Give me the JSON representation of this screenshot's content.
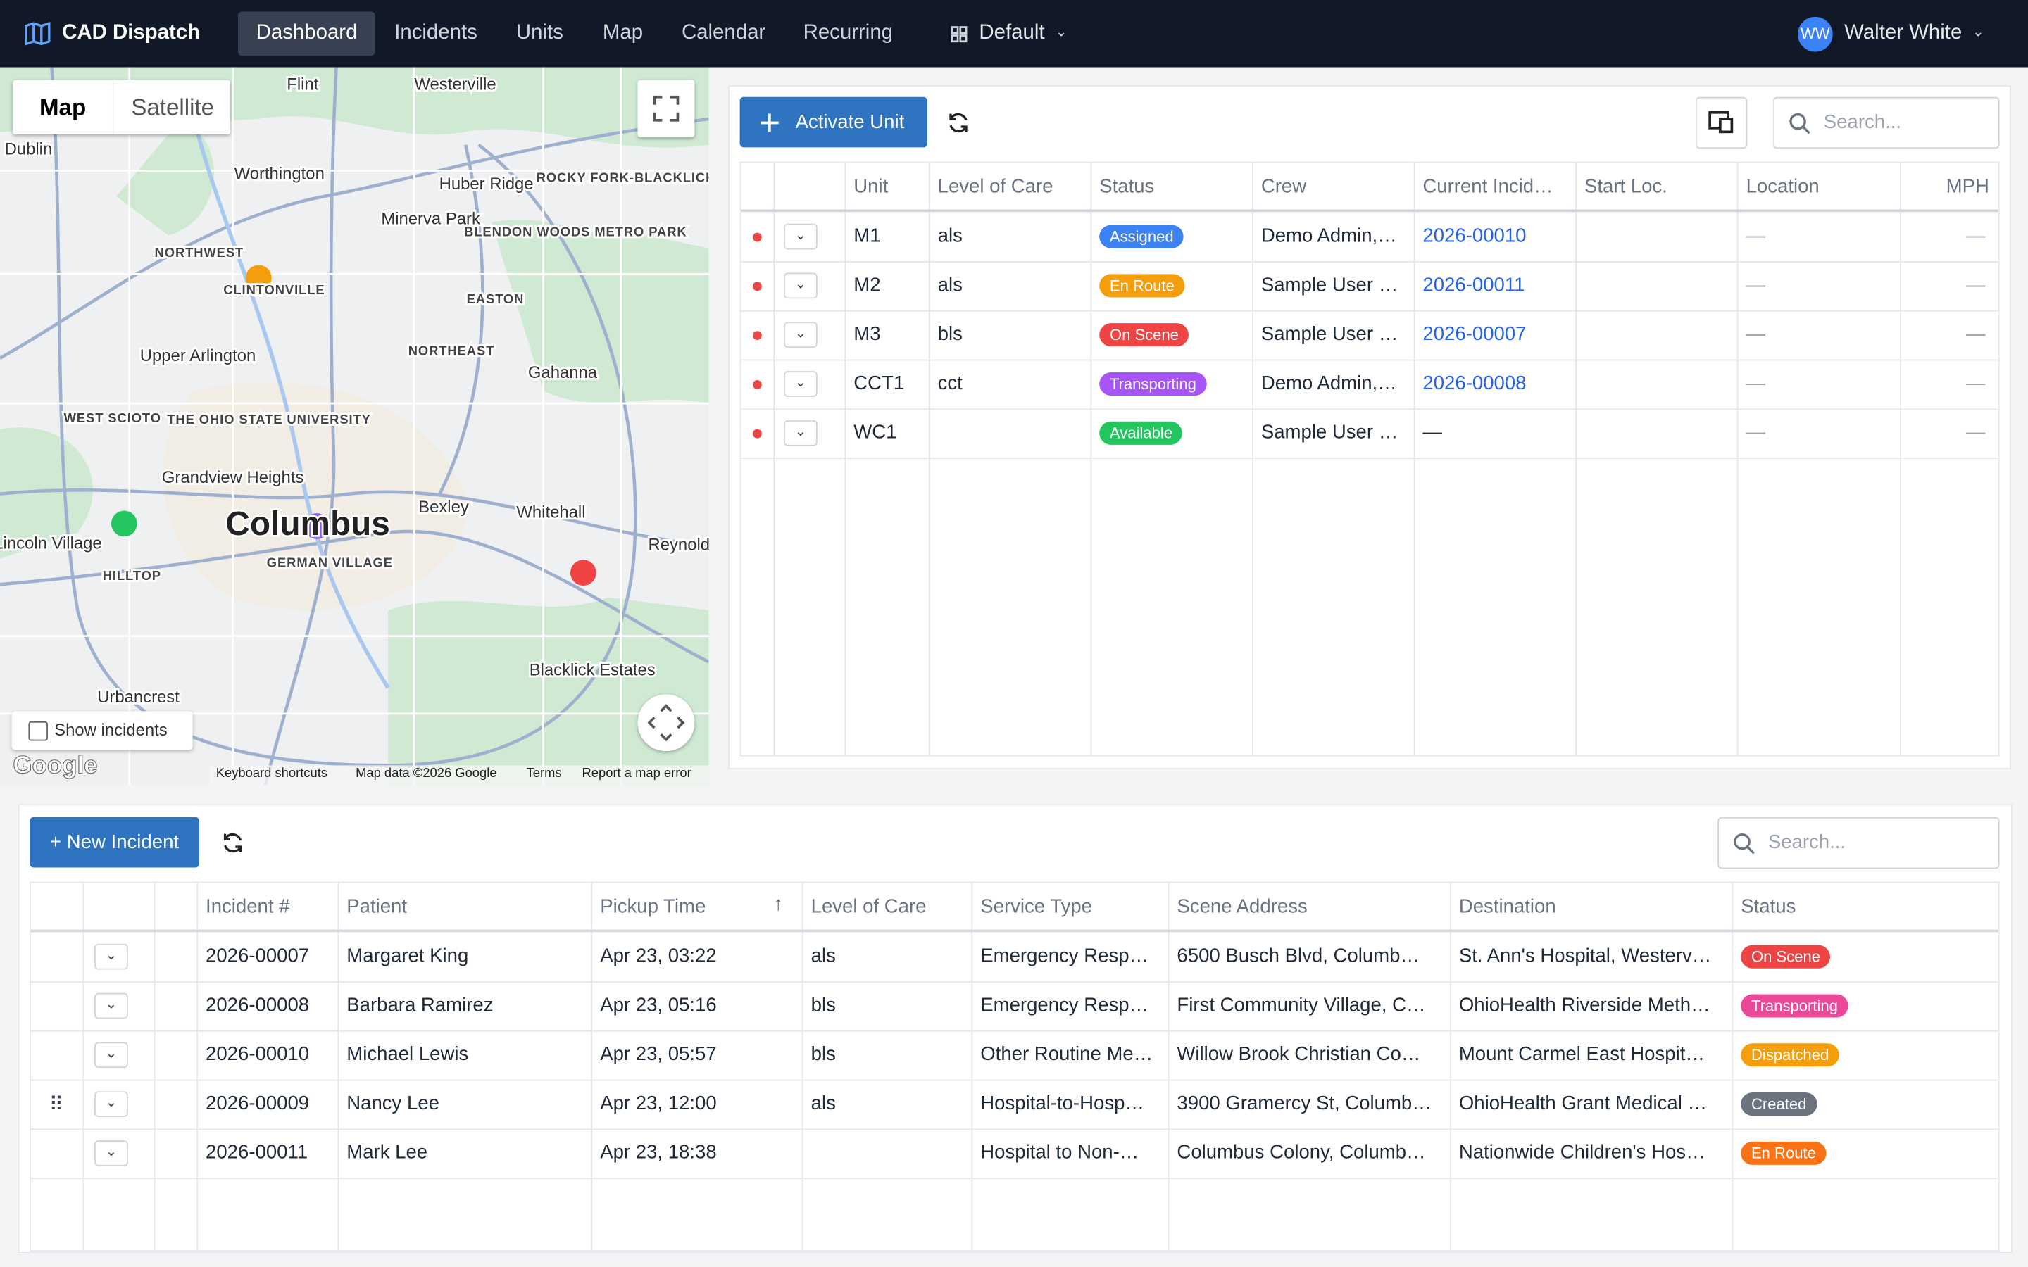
{
  "nav": {
    "brand": "CAD Dispatch",
    "items": [
      "Dashboard",
      "Incidents",
      "Units",
      "Map",
      "Calendar",
      "Recurring"
    ],
    "layout": "Default",
    "user_initials": "WW",
    "user_name": "Walter White"
  },
  "map": {
    "tabs": [
      "Map",
      "Satellite"
    ],
    "labels": [
      {
        "text": "Westerville",
        "style": "town"
      },
      {
        "text": "Flint",
        "style": "town"
      },
      {
        "text": "Worthington",
        "style": "town"
      },
      {
        "text": "Huber Ridge",
        "style": "town"
      },
      {
        "text": "Minerva Park",
        "style": "town"
      },
      {
        "text": "NORTHWEST",
        "style": "district"
      },
      {
        "text": "CLINTONVILLE",
        "style": "district"
      },
      {
        "text": "EASTON",
        "style": "district"
      },
      {
        "text": "NORTHEAST",
        "style": "district"
      },
      {
        "text": "Upper Arlington",
        "style": "town"
      },
      {
        "text": "Gahanna",
        "style": "town"
      },
      {
        "text": "WEST SCIOTO",
        "style": "district"
      },
      {
        "text": "THE OHIO STATE UNIVERSITY",
        "style": "district"
      },
      {
        "text": "Grandview Heights",
        "style": "town"
      },
      {
        "text": "Columbus",
        "style": "city"
      },
      {
        "text": "Bexley",
        "style": "town"
      },
      {
        "text": "Whitehall",
        "style": "town"
      },
      {
        "text": "Lincoln Village",
        "style": "town"
      },
      {
        "text": "Reynold",
        "style": "town"
      },
      {
        "text": "GERMAN VILLAGE",
        "style": "district"
      },
      {
        "text": "HILLTOP",
        "style": "district"
      },
      {
        "text": "Blacklick Estates",
        "style": "town"
      },
      {
        "text": "Urbancrest",
        "style": "town"
      },
      {
        "text": "Dublin",
        "style": "town"
      },
      {
        "text": "ROCKY FORK-BLACKLICK",
        "style": "district"
      },
      {
        "text": "BLENDON WOODS METRO PARK",
        "style": "district"
      }
    ],
    "show_incidents": "Show incidents",
    "logo": "Google",
    "footer": [
      "Keyboard shortcuts",
      "Map data ©2026 Google",
      "Terms",
      "Report a map error"
    ]
  },
  "units": {
    "activate": "Activate Unit",
    "search": "Search...",
    "columns": [
      "Unit",
      "Level of Care",
      "Status",
      "Crew",
      "Current Incid…",
      "Start Loc.",
      "Location",
      "MPH"
    ],
    "rows": [
      {
        "unit": "M1",
        "level": "als",
        "status": "Assigned",
        "status_color": "#3b82f6",
        "crew": "Demo Admin,…",
        "incident": "2026-00010",
        "start": null,
        "location": "—",
        "mph": "—"
      },
      {
        "unit": "M2",
        "level": "als",
        "status": "En Route",
        "status_color": "#f59e0b",
        "crew": "Sample User …",
        "incident": "2026-00011",
        "start": null,
        "location": "—",
        "mph": "—"
      },
      {
        "unit": "M3",
        "level": "bls",
        "status": "On Scene",
        "status_color": "#ef4444",
        "crew": "Sample User …",
        "incident": "2026-00007",
        "start": null,
        "location": "—",
        "mph": "—"
      },
      {
        "unit": "CCT1",
        "level": "cct",
        "status": "Transporting",
        "status_color": "#a855f7",
        "crew": "Demo Admin,…",
        "incident": "2026-00008",
        "start": null,
        "location": "—",
        "mph": "—"
      },
      {
        "unit": "WC1",
        "level": null,
        "status": "Available",
        "status_color": "#22c55e",
        "crew": "Sample User …",
        "incident": "—",
        "start": null,
        "location": "—",
        "mph": "—"
      }
    ]
  },
  "incidents": {
    "new": "+ New Incident",
    "search": "Search...",
    "columns": [
      "Incident #",
      "Patient",
      "Pickup Time",
      "Level of Care",
      "Service Type",
      "Scene Address",
      "Destination",
      "Status"
    ],
    "rows": [
      {
        "incident": "2026-00007",
        "patient": "Margaret King",
        "pickup": "Apr 23, 03:22",
        "level": "als",
        "service": "Emergency Resp…",
        "scene": "6500 Busch Blvd, Columb…",
        "destination": "St. Ann's Hospital, Westerv…",
        "status": "On Scene",
        "status_color": "#ef4444"
      },
      {
        "incident": "2026-00008",
        "patient": "Barbara Ramirez",
        "pickup": "Apr 23, 05:16",
        "level": "bls",
        "service": "Emergency Resp…",
        "scene": "First Community Village, C…",
        "destination": "OhioHealth Riverside Meth…",
        "status": "Transporting",
        "status_color": "#ec4899"
      },
      {
        "incident": "2026-00010",
        "patient": "Michael Lewis",
        "pickup": "Apr 23, 05:57",
        "level": "bls",
        "service": "Other Routine Me…",
        "scene": "Willow Brook Christian Co…",
        "destination": "Mount Carmel East Hospit…",
        "status": "Dispatched",
        "status_color": "#f59e0b"
      },
      {
        "incident": "2026-00009",
        "patient": "Nancy Lee",
        "pickup": "Apr 23, 12:00",
        "level": "als",
        "service": "Hospital-to-Hosp…",
        "scene": "3900 Gramercy St, Columb…",
        "destination": "OhioHealth Grant Medical …",
        "status": "Created",
        "status_color": "#6b7280"
      },
      {
        "incident": "2026-00011",
        "patient": "Mark Lee",
        "pickup": "Apr 23, 18:38",
        "level": null,
        "service": "Hospital to Non-…",
        "scene": "Columbus Colony, Columb…",
        "destination": "Nationwide Children's Hos…",
        "status": "En Route",
        "status_color": "#f97316"
      }
    ]
  }
}
